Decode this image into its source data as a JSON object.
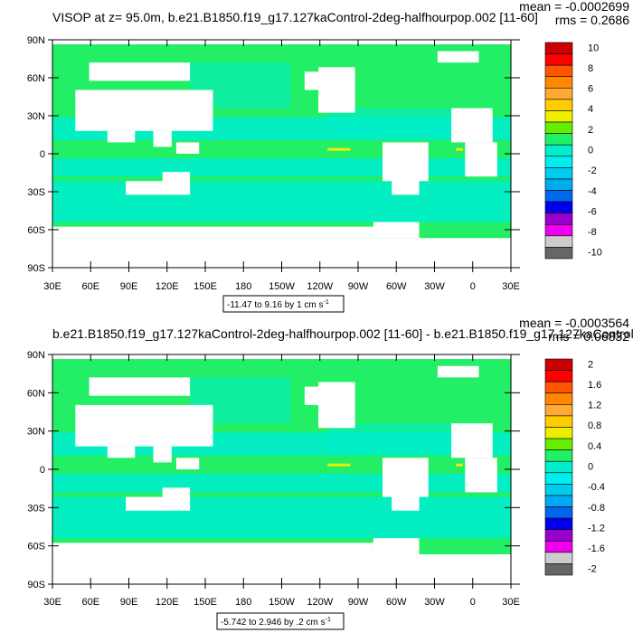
{
  "panels": [
    {
      "title": "VISOP at z=  95.0m, b.e21.B1850.f19_g17.127kaControl-2deg-halfhourpop.002 [11-60]",
      "mean": "mean = -0.0002699",
      "rms": "rms = 0.2686",
      "range_label": "-11.47 to 9.16 by 1 cm s",
      "range_sup": "-1"
    },
    {
      "title": "b.e21.B1850.f19_g17.127kaControl-2deg-halfhourpop.002 [11-60] - b.e21.B1850.f19_g17.127kaControl-",
      "mean": "mean = -0.0003564",
      "rms": "rms = 0.06832",
      "range_label": "-5.742 to 2.946 by .2 cm s",
      "range_sup": "-1"
    }
  ],
  "colors": {
    "land": "#ffffff",
    "field_main": "#22ee66",
    "field_low": "#00eecc",
    "scale": [
      "#666666",
      "#cccccc",
      "#ee00ee",
      "#9900cc",
      "#0000ee",
      "#0066ee",
      "#00aaee",
      "#00ccee",
      "#00eeee",
      "#00eecc",
      "#22ee66",
      "#66ee00",
      "#eeee00",
      "#ffcc00",
      "#ffaa33",
      "#ff8800",
      "#ff5500",
      "#ff0000",
      "#cc0000"
    ]
  },
  "chart_data": [
    {
      "type": "heatmap",
      "title": "VISOP at z=  95.0m, b.e21.B1850.f19_g17.127kaControl-2deg-halfhourpop.002 [11-60]",
      "x_ticks": [
        "30E",
        "60E",
        "90E",
        "120E",
        "150E",
        "180",
        "150W",
        "120W",
        "90W",
        "60W",
        "30W",
        "0",
        "30E"
      ],
      "y_ticks": [
        "90N",
        "60N",
        "30N",
        "0",
        "30S",
        "60S",
        "90S"
      ],
      "colorbar_labels": [
        "10",
        "8",
        "6",
        "4",
        "2",
        "0",
        "-2",
        "-4",
        "-6",
        "-8",
        "-10"
      ],
      "colorbar_levels": 19,
      "xlim": [
        30,
        390
      ],
      "ylim": [
        -90,
        90
      ]
    },
    {
      "type": "heatmap",
      "title": "b.e21.B1850.f19_g17.127kaControl-2deg-halfhourpop.002 [11-60] - b.e21.B1850.f19_g17.127kaControl-",
      "x_ticks": [
        "30E",
        "60E",
        "90E",
        "120E",
        "150E",
        "180",
        "150W",
        "120W",
        "90W",
        "60W",
        "30W",
        "0",
        "30E"
      ],
      "y_ticks": [
        "90N",
        "60N",
        "30N",
        "0",
        "30S",
        "60S",
        "90S"
      ],
      "colorbar_labels": [
        "2",
        "1.6",
        "1.2",
        "0.8",
        "0.4",
        "0",
        "-0.4",
        "-0.8",
        "-1.2",
        "-1.6",
        "-2"
      ],
      "colorbar_levels": 19,
      "xlim": [
        30,
        390
      ],
      "ylim": [
        -90,
        90
      ]
    }
  ]
}
